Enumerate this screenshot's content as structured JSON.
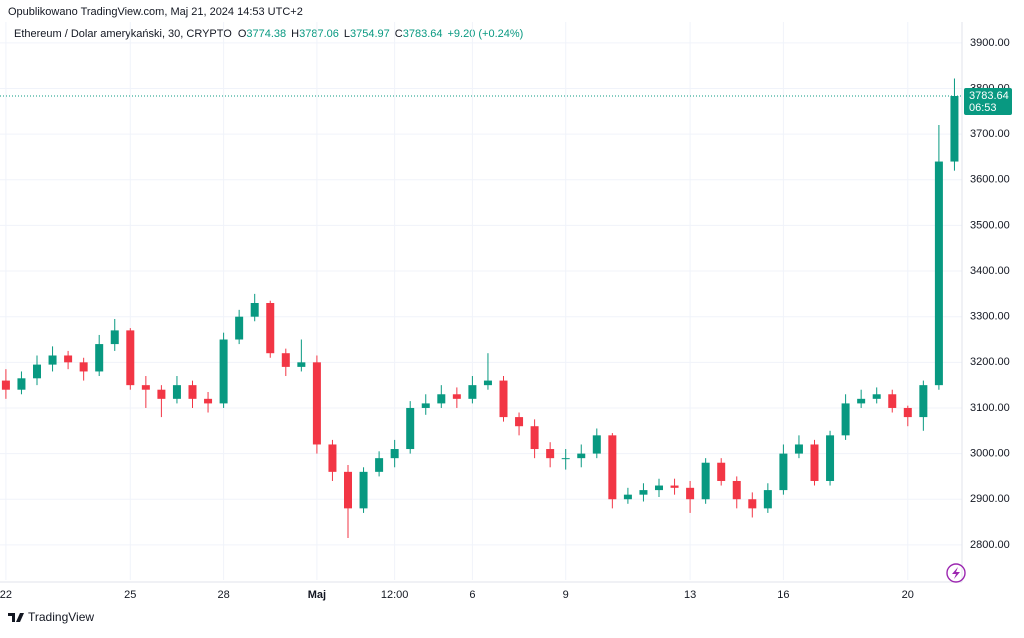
{
  "header": {
    "published": "Opublikowano TradingView.com, Maj 21, 2024 14:53 UTC+2",
    "symbol": "Ethereum / Dolar amerykański, 30, CRYPTO",
    "o_label": "O",
    "open": 3774.38,
    "h_label": "H",
    "high": 3787.06,
    "l_label": "L",
    "low": 3754.97,
    "c_label": "C",
    "close": 3783.64,
    "change": "+9.20 (+0.24%)"
  },
  "chart_data": {
    "type": "candlestick",
    "categories": [
      "22",
      null,
      null,
      null,
      null,
      null,
      null,
      null,
      "25",
      null,
      null,
      null,
      null,
      null,
      "28",
      null,
      null,
      null,
      null,
      null,
      "Maj",
      null,
      null,
      null,
      null,
      "12:00",
      null,
      null,
      null,
      null,
      "6",
      null,
      null,
      null,
      null,
      null,
      "9",
      null,
      null,
      null,
      null,
      null,
      null,
      null,
      "13",
      null,
      null,
      null,
      null,
      null,
      "16",
      null,
      null,
      null,
      null,
      null,
      null,
      null,
      "20",
      null,
      null,
      null
    ],
    "open": [
      3160,
      3140,
      3165,
      3195,
      3215,
      3200,
      3180,
      3240,
      3270,
      3150,
      3140,
      3120,
      3150,
      3120,
      3110,
      3250,
      3300,
      3330,
      3220,
      3190,
      3200,
      3020,
      2960,
      2880,
      2960,
      2990,
      3010,
      3100,
      3110,
      3130,
      3120,
      3150,
      3160,
      3080,
      3060,
      3010,
      2990,
      2990,
      3000,
      3040,
      2900,
      2910,
      2920,
      2930,
      2925,
      2900,
      2980,
      2940,
      2900,
      2880,
      2920,
      3000,
      3020,
      2940,
      3040,
      3110,
      3120,
      3130,
      3100,
      3080,
      3150,
      3640
    ],
    "high": [
      3185,
      3180,
      3215,
      3235,
      3225,
      3210,
      3260,
      3295,
      3275,
      3170,
      3150,
      3170,
      3160,
      3135,
      3265,
      3315,
      3350,
      3335,
      3230,
      3250,
      3215,
      3030,
      2975,
      2970,
      3005,
      3030,
      3115,
      3130,
      3150,
      3145,
      3170,
      3220,
      3170,
      3090,
      3075,
      3025,
      3010,
      3020,
      3055,
      3045,
      2925,
      2935,
      2945,
      2945,
      2940,
      2990,
      2990,
      2950,
      2915,
      2935,
      3020,
      3040,
      3030,
      3050,
      3130,
      3140,
      3145,
      3140,
      3105,
      3160,
      3720,
      3822
    ],
    "low": [
      3120,
      3130,
      3150,
      3180,
      3185,
      3160,
      3170,
      3225,
      3140,
      3100,
      3080,
      3110,
      3100,
      3090,
      3100,
      3240,
      3290,
      3210,
      3170,
      3180,
      3000,
      2940,
      2815,
      2870,
      2950,
      2970,
      3000,
      3085,
      3100,
      3100,
      3110,
      3140,
      3070,
      3040,
      2990,
      2970,
      2965,
      2970,
      2990,
      2880,
      2890,
      2895,
      2905,
      2910,
      2870,
      2890,
      2930,
      2880,
      2860,
      2870,
      2910,
      2990,
      2930,
      2930,
      3030,
      3100,
      3110,
      3090,
      3060,
      3050,
      3140,
      3620
    ],
    "close": [
      3140,
      3165,
      3195,
      3215,
      3200,
      3180,
      3240,
      3270,
      3150,
      3140,
      3120,
      3150,
      3120,
      3110,
      3250,
      3300,
      3330,
      3220,
      3190,
      3200,
      3020,
      2960,
      2880,
      2960,
      2990,
      3010,
      3100,
      3110,
      3130,
      3120,
      3150,
      3160,
      3080,
      3060,
      3010,
      2990,
      2990,
      3000,
      3040,
      2900,
      2910,
      2920,
      2930,
      2925,
      2900,
      2980,
      2940,
      2900,
      2880,
      2920,
      3000,
      3020,
      2940,
      3040,
      3110,
      3120,
      3130,
      3100,
      3080,
      3150,
      3640,
      3783.64
    ],
    "up_color": "#089981",
    "down_color": "#f23645",
    "ylim": [
      2723,
      3994
    ],
    "yticks": [
      {
        "value": 2800,
        "label": "2800.00"
      },
      {
        "value": 2900,
        "label": "2900.00"
      },
      {
        "value": 3000,
        "label": "3000.00"
      },
      {
        "value": 3100,
        "label": "3100.00"
      },
      {
        "value": 3200,
        "label": "3200.00"
      },
      {
        "value": 3300,
        "label": "3300.00"
      },
      {
        "value": 3400,
        "label": "3400.00"
      },
      {
        "value": 3500,
        "label": "3500.00"
      },
      {
        "value": 3600,
        "label": "3600.00"
      },
      {
        "value": 3700,
        "label": "3700.00"
      },
      {
        "value": 3800,
        "label": "3800.00"
      },
      {
        "value": 3900,
        "label": "3900.00"
      }
    ],
    "grid": true,
    "countdown": "06:53"
  },
  "footer": {
    "brand": "TradingView"
  }
}
